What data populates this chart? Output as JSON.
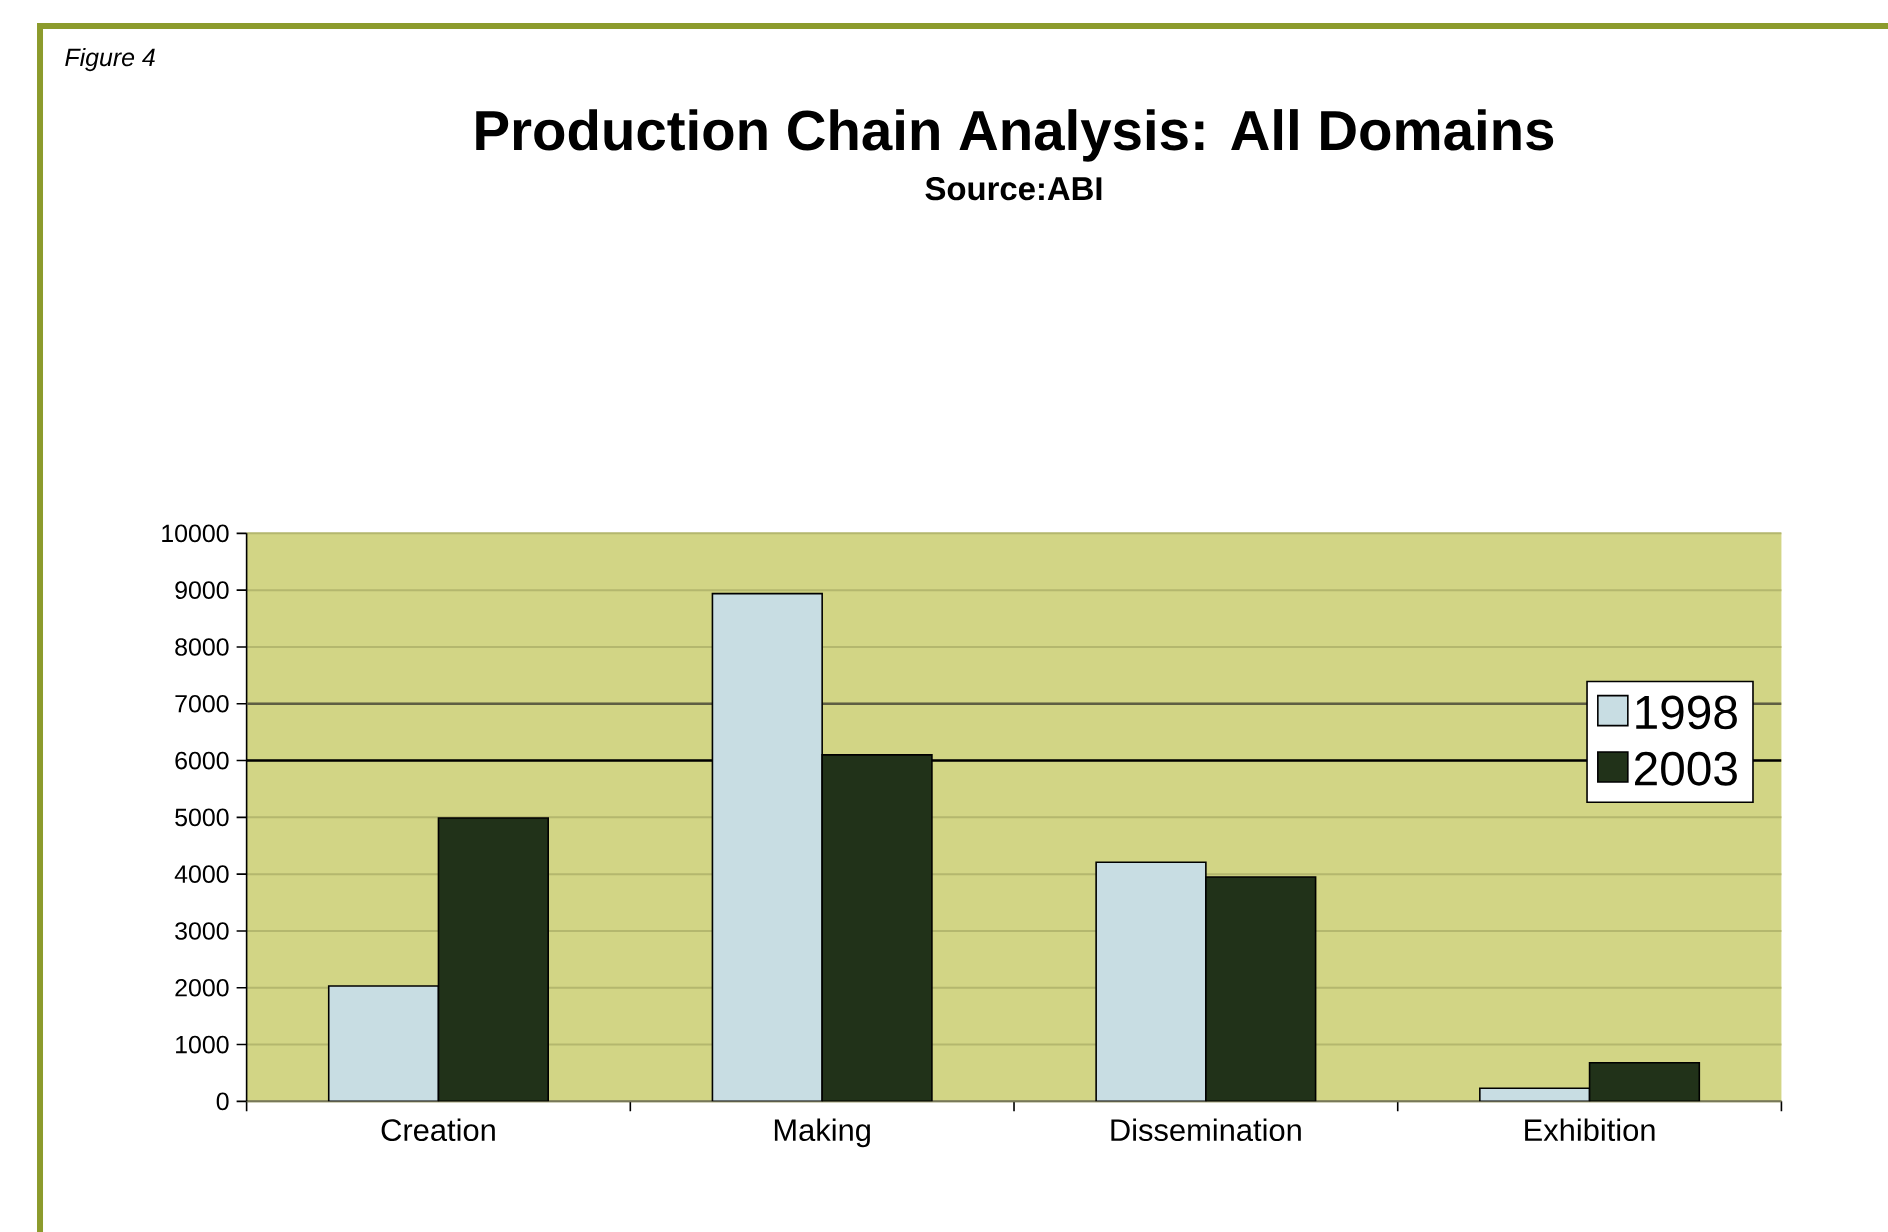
{
  "chart_data": {
    "type": "bar",
    "title": "Production Chain Analysis: All Domains",
    "subtitle": "Source:ABI",
    "annotations": [
      "Figure 4"
    ],
    "categories": [
      "Creation",
      "Making",
      "Dissemination",
      "Exhibition"
    ],
    "series": [
      {
        "name": "1998",
        "color": "#c8dde3",
        "values": [
          2030,
          8940,
          4210,
          230
        ]
      },
      {
        "name": "2003",
        "color": "#213219",
        "values": [
          4990,
          6100,
          3950,
          680
        ]
      }
    ],
    "ylim": [
      0,
      10000
    ],
    "yticks": [
      0,
      1000,
      2000,
      3000,
      4000,
      5000,
      6000,
      7000,
      8000,
      9000,
      10000
    ],
    "grid": "y",
    "legend": "right",
    "ref_lines": [
      {
        "axis": "y",
        "value": 7000,
        "color": "#5e5e43"
      },
      {
        "axis": "y",
        "value": 6000,
        "color": "#000000"
      }
    ]
  }
}
